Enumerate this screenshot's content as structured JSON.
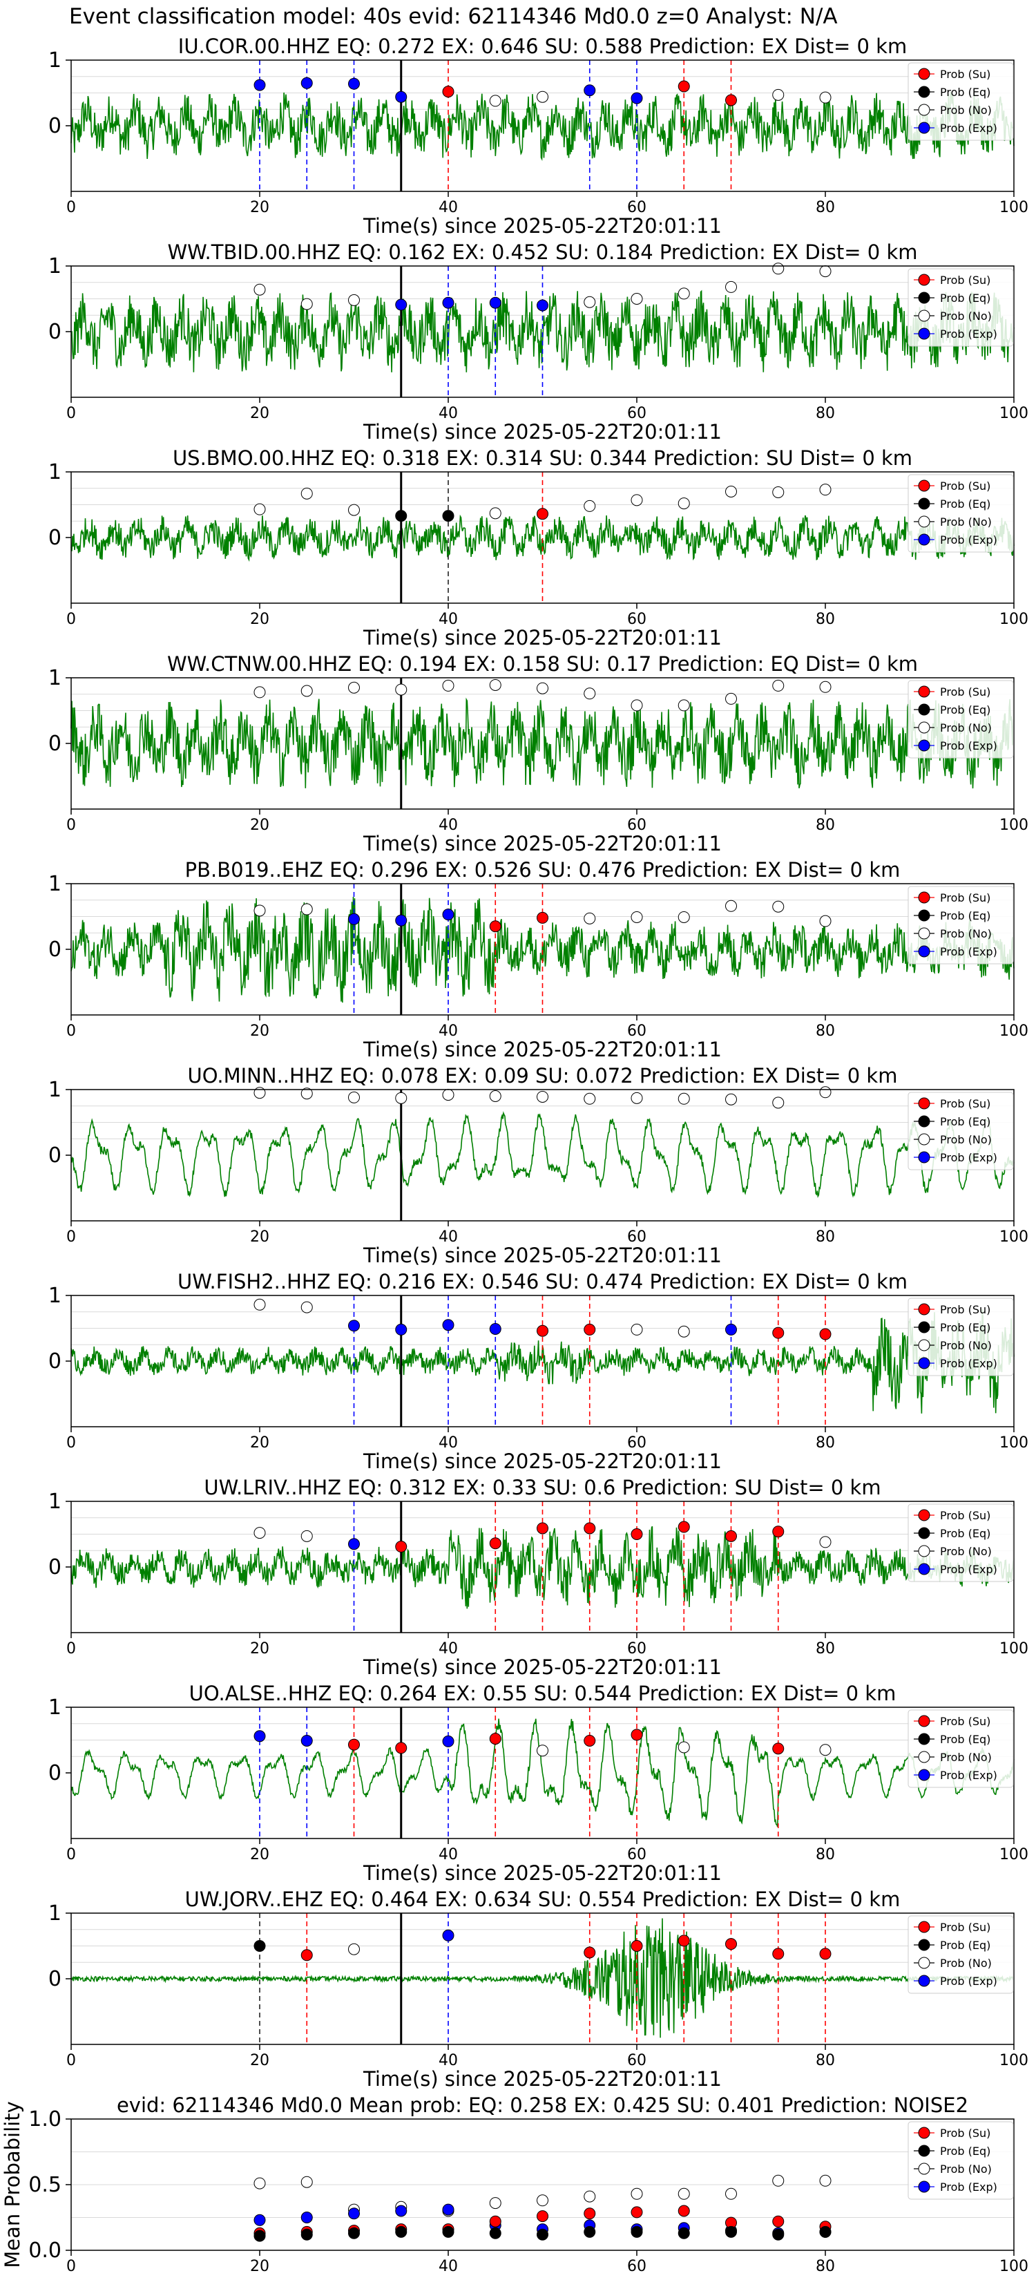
{
  "figure_title": "Event classification model: 40s evid: 62114346 Md0.0 z=0 Analyst: N/A",
  "legend_labels": [
    "Prob (Su)",
    "Prob (Eq)",
    "Prob (No)",
    "Prob (Exp)"
  ],
  "colors": {
    "trace": "#008000",
    "su": "#ff0000",
    "eq": "#000000",
    "no": "#ffffff",
    "exp": "#0000ff",
    "grid": "#d9d9d9"
  },
  "chart_data": [
    {
      "type": "line",
      "title": "IU.COR.00.HHZ   EQ: 0.272  EX: 0.646  SU: 0.588   Prediction: EX    Dist= 0 km",
      "xlabel": "Time(s) since 2025-05-22T20:01:11",
      "ylabel": "",
      "xlim": [
        0,
        100
      ],
      "ylim": [
        -1,
        1
      ],
      "xticks": [
        0,
        20,
        40,
        60,
        80,
        100
      ],
      "yticks": [
        0,
        1
      ],
      "waveform": {
        "amp": 0.45,
        "style": "noisy",
        "envelope": "even"
      },
      "onset_line_x": 35,
      "points": [
        {
          "x": 20,
          "y": 0.62,
          "cls": "exp"
        },
        {
          "x": 25,
          "y": 0.65,
          "cls": "exp"
        },
        {
          "x": 30,
          "y": 0.64,
          "cls": "exp"
        },
        {
          "x": 35,
          "y": 0.44,
          "cls": "exp"
        },
        {
          "x": 40,
          "y": 0.52,
          "cls": "su"
        },
        {
          "x": 45,
          "y": 0.38,
          "cls": "no"
        },
        {
          "x": 50,
          "y": 0.44,
          "cls": "no"
        },
        {
          "x": 55,
          "y": 0.54,
          "cls": "exp"
        },
        {
          "x": 60,
          "y": 0.42,
          "cls": "exp"
        },
        {
          "x": 65,
          "y": 0.6,
          "cls": "su"
        },
        {
          "x": 70,
          "y": 0.39,
          "cls": "su"
        },
        {
          "x": 75,
          "y": 0.47,
          "cls": "no"
        },
        {
          "x": 80,
          "y": 0.43,
          "cls": "no"
        }
      ]
    },
    {
      "type": "line",
      "title": "WW.TBID.00.HHZ   EQ: 0.162  EX: 0.452  SU: 0.184   Prediction: EX    Dist= 0 km",
      "xlabel": "Time(s) since 2025-05-22T20:01:11",
      "ylabel": "",
      "xlim": [
        0,
        100
      ],
      "ylim": [
        -1,
        1
      ],
      "xticks": [
        0,
        20,
        40,
        60,
        80,
        100
      ],
      "yticks": [
        0,
        1
      ],
      "waveform": {
        "amp": 0.55,
        "style": "noisy",
        "envelope": "even"
      },
      "onset_line_x": 35,
      "points": [
        {
          "x": 20,
          "y": 0.64,
          "cls": "no"
        },
        {
          "x": 25,
          "y": 0.42,
          "cls": "no"
        },
        {
          "x": 30,
          "y": 0.48,
          "cls": "no"
        },
        {
          "x": 35,
          "y": 0.41,
          "cls": "exp"
        },
        {
          "x": 40,
          "y": 0.44,
          "cls": "exp"
        },
        {
          "x": 45,
          "y": 0.44,
          "cls": "exp"
        },
        {
          "x": 50,
          "y": 0.4,
          "cls": "exp"
        },
        {
          "x": 55,
          "y": 0.45,
          "cls": "no"
        },
        {
          "x": 60,
          "y": 0.5,
          "cls": "no"
        },
        {
          "x": 65,
          "y": 0.58,
          "cls": "no"
        },
        {
          "x": 70,
          "y": 0.68,
          "cls": "no"
        },
        {
          "x": 75,
          "y": 0.96,
          "cls": "no"
        },
        {
          "x": 80,
          "y": 0.92,
          "cls": "no"
        }
      ]
    },
    {
      "type": "line",
      "title": "US.BMO.00.HHZ   EQ: 0.318  EX: 0.314  SU: 0.344   Prediction: SU    Dist= 0 km",
      "xlabel": "Time(s) since 2025-05-22T20:01:11",
      "ylabel": "",
      "xlim": [
        0,
        100
      ],
      "ylim": [
        -1,
        1
      ],
      "xticks": [
        0,
        20,
        40,
        60,
        80,
        100
      ],
      "yticks": [
        0,
        1
      ],
      "waveform": {
        "amp": 0.3,
        "style": "noisy",
        "envelope": "even"
      },
      "onset_line_x": 35,
      "points": [
        {
          "x": 20,
          "y": 0.43,
          "cls": "no"
        },
        {
          "x": 25,
          "y": 0.67,
          "cls": "no"
        },
        {
          "x": 30,
          "y": 0.42,
          "cls": "no"
        },
        {
          "x": 35,
          "y": 0.33,
          "cls": "eq"
        },
        {
          "x": 40,
          "y": 0.33,
          "cls": "eq"
        },
        {
          "x": 45,
          "y": 0.37,
          "cls": "no"
        },
        {
          "x": 50,
          "y": 0.36,
          "cls": "su"
        },
        {
          "x": 55,
          "y": 0.48,
          "cls": "no"
        },
        {
          "x": 60,
          "y": 0.57,
          "cls": "no"
        },
        {
          "x": 65,
          "y": 0.52,
          "cls": "no"
        },
        {
          "x": 70,
          "y": 0.7,
          "cls": "no"
        },
        {
          "x": 75,
          "y": 0.69,
          "cls": "no"
        },
        {
          "x": 80,
          "y": 0.73,
          "cls": "no"
        }
      ]
    },
    {
      "type": "line",
      "title": "WW.CTNW.00.HHZ   EQ: 0.194  EX: 0.158  SU: 0.17   Prediction: EQ    Dist= 0 km",
      "xlabel": "Time(s) since 2025-05-22T20:01:11",
      "ylabel": "",
      "xlim": [
        0,
        100
      ],
      "ylim": [
        -1,
        1
      ],
      "xticks": [
        0,
        20,
        40,
        60,
        80,
        100
      ],
      "yticks": [
        0,
        1
      ],
      "waveform": {
        "amp": 0.6,
        "style": "noisy",
        "envelope": "even"
      },
      "onset_line_x": 35,
      "points": [
        {
          "x": 20,
          "y": 0.78,
          "cls": "no"
        },
        {
          "x": 25,
          "y": 0.8,
          "cls": "no"
        },
        {
          "x": 30,
          "y": 0.85,
          "cls": "no"
        },
        {
          "x": 35,
          "y": 0.82,
          "cls": "no"
        },
        {
          "x": 40,
          "y": 0.88,
          "cls": "no"
        },
        {
          "x": 45,
          "y": 0.89,
          "cls": "no"
        },
        {
          "x": 50,
          "y": 0.84,
          "cls": "no"
        },
        {
          "x": 55,
          "y": 0.76,
          "cls": "no"
        },
        {
          "x": 60,
          "y": 0.58,
          "cls": "no"
        },
        {
          "x": 65,
          "y": 0.58,
          "cls": "no"
        },
        {
          "x": 70,
          "y": 0.68,
          "cls": "no"
        },
        {
          "x": 75,
          "y": 0.88,
          "cls": "no"
        },
        {
          "x": 80,
          "y": 0.86,
          "cls": "no"
        }
      ]
    },
    {
      "type": "line",
      "title": "PB.B019..EHZ   EQ: 0.296  EX: 0.526  SU: 0.476   Prediction: EX    Dist= 0 km",
      "xlabel": "Time(s) since 2025-05-22T20:01:11",
      "ylabel": "",
      "xlim": [
        0,
        100
      ],
      "ylim": [
        -1,
        1
      ],
      "xticks": [
        0,
        20,
        40,
        60,
        80,
        100
      ],
      "yticks": [
        0,
        1
      ],
      "waveform": {
        "amp": 0.55,
        "style": "noisy",
        "envelope": "early"
      },
      "onset_line_x": 35,
      "points": [
        {
          "x": 20,
          "y": 0.59,
          "cls": "no"
        },
        {
          "x": 25,
          "y": 0.61,
          "cls": "no"
        },
        {
          "x": 30,
          "y": 0.46,
          "cls": "exp"
        },
        {
          "x": 35,
          "y": 0.44,
          "cls": "exp"
        },
        {
          "x": 40,
          "y": 0.53,
          "cls": "exp"
        },
        {
          "x": 45,
          "y": 0.35,
          "cls": "su"
        },
        {
          "x": 50,
          "y": 0.48,
          "cls": "su"
        },
        {
          "x": 55,
          "y": 0.47,
          "cls": "no"
        },
        {
          "x": 60,
          "y": 0.49,
          "cls": "no"
        },
        {
          "x": 65,
          "y": 0.49,
          "cls": "no"
        },
        {
          "x": 70,
          "y": 0.66,
          "cls": "no"
        },
        {
          "x": 75,
          "y": 0.65,
          "cls": "no"
        },
        {
          "x": 80,
          "y": 0.43,
          "cls": "no"
        }
      ]
    },
    {
      "type": "line",
      "title": "UO.MINN..HHZ   EQ: 0.078  EX: 0.09  SU: 0.072   Prediction: EX    Dist= 0 km",
      "xlabel": "Time(s) since 2025-05-22T20:01:11",
      "ylabel": "",
      "xlim": [
        0,
        100
      ],
      "ylim": [
        -1,
        1
      ],
      "xticks": [
        0,
        20,
        40,
        60,
        80,
        100
      ],
      "yticks": [
        0,
        1
      ],
      "waveform": {
        "amp": 0.55,
        "style": "smooth",
        "envelope": "even"
      },
      "onset_line_x": 35,
      "points": [
        {
          "x": 20,
          "y": 0.95,
          "cls": "no"
        },
        {
          "x": 25,
          "y": 0.94,
          "cls": "no"
        },
        {
          "x": 30,
          "y": 0.88,
          "cls": "no"
        },
        {
          "x": 35,
          "y": 0.87,
          "cls": "no"
        },
        {
          "x": 40,
          "y": 0.92,
          "cls": "no"
        },
        {
          "x": 45,
          "y": 0.9,
          "cls": "no"
        },
        {
          "x": 50,
          "y": 0.89,
          "cls": "no"
        },
        {
          "x": 55,
          "y": 0.86,
          "cls": "no"
        },
        {
          "x": 60,
          "y": 0.87,
          "cls": "no"
        },
        {
          "x": 65,
          "y": 0.86,
          "cls": "no"
        },
        {
          "x": 70,
          "y": 0.85,
          "cls": "no"
        },
        {
          "x": 75,
          "y": 0.8,
          "cls": "no"
        },
        {
          "x": 80,
          "y": 0.96,
          "cls": "no"
        }
      ]
    },
    {
      "type": "line",
      "title": "UW.FISH2..HHZ   EQ: 0.216  EX: 0.546  SU: 0.474   Prediction: EX    Dist= 0 km",
      "xlabel": "Time(s) since 2025-05-22T20:01:11",
      "ylabel": "",
      "xlim": [
        0,
        100
      ],
      "ylim": [
        -1,
        1
      ],
      "xticks": [
        0,
        20,
        40,
        60,
        80,
        100
      ],
      "yticks": [
        0,
        1
      ],
      "waveform": {
        "amp": 0.2,
        "style": "noisy",
        "envelope": "late"
      },
      "onset_line_x": 35,
      "points": [
        {
          "x": 20,
          "y": 0.86,
          "cls": "no"
        },
        {
          "x": 25,
          "y": 0.82,
          "cls": "no"
        },
        {
          "x": 30,
          "y": 0.54,
          "cls": "exp"
        },
        {
          "x": 35,
          "y": 0.48,
          "cls": "exp"
        },
        {
          "x": 40,
          "y": 0.55,
          "cls": "exp"
        },
        {
          "x": 45,
          "y": 0.49,
          "cls": "exp"
        },
        {
          "x": 50,
          "y": 0.46,
          "cls": "su"
        },
        {
          "x": 55,
          "y": 0.48,
          "cls": "su"
        },
        {
          "x": 60,
          "y": 0.48,
          "cls": "no"
        },
        {
          "x": 65,
          "y": 0.45,
          "cls": "no"
        },
        {
          "x": 70,
          "y": 0.48,
          "cls": "exp"
        },
        {
          "x": 75,
          "y": 0.43,
          "cls": "su"
        },
        {
          "x": 80,
          "y": 0.41,
          "cls": "su"
        }
      ]
    },
    {
      "type": "line",
      "title": "UW.LRIV..HHZ   EQ: 0.312  EX: 0.33  SU: 0.6   Prediction: SU    Dist= 0 km",
      "xlabel": "Time(s) since 2025-05-22T20:01:11",
      "ylabel": "",
      "xlim": [
        0,
        100
      ],
      "ylim": [
        -1,
        1
      ],
      "xticks": [
        0,
        20,
        40,
        60,
        80,
        100
      ],
      "yticks": [
        0,
        1
      ],
      "waveform": {
        "amp": 0.35,
        "style": "noisy",
        "envelope": "mid"
      },
      "onset_line_x": 35,
      "points": [
        {
          "x": 20,
          "y": 0.52,
          "cls": "no"
        },
        {
          "x": 25,
          "y": 0.47,
          "cls": "no"
        },
        {
          "x": 30,
          "y": 0.35,
          "cls": "exp"
        },
        {
          "x": 35,
          "y": 0.31,
          "cls": "su"
        },
        {
          "x": 45,
          "y": 0.36,
          "cls": "su"
        },
        {
          "x": 50,
          "y": 0.59,
          "cls": "su"
        },
        {
          "x": 55,
          "y": 0.59,
          "cls": "su"
        },
        {
          "x": 60,
          "y": 0.5,
          "cls": "su"
        },
        {
          "x": 65,
          "y": 0.61,
          "cls": "su"
        },
        {
          "x": 70,
          "y": 0.47,
          "cls": "su"
        },
        {
          "x": 75,
          "y": 0.54,
          "cls": "su"
        },
        {
          "x": 80,
          "y": 0.38,
          "cls": "no"
        }
      ]
    },
    {
      "type": "line",
      "title": "UO.ALSE..HHZ   EQ: 0.264  EX: 0.55  SU: 0.544   Prediction: EX    Dist= 0 km",
      "xlabel": "Time(s) since 2025-05-22T20:01:11",
      "ylabel": "",
      "xlim": [
        0,
        100
      ],
      "ylim": [
        -1,
        1
      ],
      "xticks": [
        0,
        20,
        40,
        60,
        80,
        100
      ],
      "yticks": [
        0,
        1
      ],
      "waveform": {
        "amp": 0.45,
        "style": "smooth",
        "envelope": "mid"
      },
      "onset_line_x": 35,
      "points": [
        {
          "x": 20,
          "y": 0.56,
          "cls": "exp"
        },
        {
          "x": 25,
          "y": 0.49,
          "cls": "exp"
        },
        {
          "x": 30,
          "y": 0.43,
          "cls": "su"
        },
        {
          "x": 35,
          "y": 0.38,
          "cls": "su"
        },
        {
          "x": 40,
          "y": 0.48,
          "cls": "exp"
        },
        {
          "x": 45,
          "y": 0.52,
          "cls": "su"
        },
        {
          "x": 50,
          "y": 0.34,
          "cls": "no"
        },
        {
          "x": 55,
          "y": 0.49,
          "cls": "su"
        },
        {
          "x": 60,
          "y": 0.58,
          "cls": "su"
        },
        {
          "x": 65,
          "y": 0.39,
          "cls": "no"
        },
        {
          "x": 75,
          "y": 0.37,
          "cls": "su"
        },
        {
          "x": 80,
          "y": 0.35,
          "cls": "no"
        }
      ]
    },
    {
      "type": "line",
      "title": "UW.JORV..EHZ   EQ: 0.464  EX: 0.634  SU: 0.554   Prediction: EX    Dist= 0 km",
      "xlabel": "Time(s) since 2025-05-22T20:01:11",
      "ylabel": "",
      "xlim": [
        0,
        100
      ],
      "ylim": [
        -1,
        1
      ],
      "xticks": [
        0,
        20,
        40,
        60,
        80,
        100
      ],
      "yticks": [
        0,
        1
      ],
      "waveform": {
        "amp": 0.9,
        "style": "burst",
        "envelope": "burst"
      },
      "onset_line_x": 35,
      "points": [
        {
          "x": 20,
          "y": 0.5,
          "cls": "eq"
        },
        {
          "x": 25,
          "y": 0.36,
          "cls": "su"
        },
        {
          "x": 30,
          "y": 0.45,
          "cls": "no"
        },
        {
          "x": 40,
          "y": 0.66,
          "cls": "exp"
        },
        {
          "x": 55,
          "y": 0.4,
          "cls": "su"
        },
        {
          "x": 60,
          "y": 0.5,
          "cls": "su"
        },
        {
          "x": 65,
          "y": 0.58,
          "cls": "su"
        },
        {
          "x": 70,
          "y": 0.53,
          "cls": "su"
        },
        {
          "x": 75,
          "y": 0.38,
          "cls": "su"
        },
        {
          "x": 80,
          "y": 0.38,
          "cls": "su"
        }
      ]
    },
    {
      "type": "scatter",
      "title": "evid: 62114346  Md0.0   Mean prob:   EQ: 0.258  EX: 0.425  SU: 0.401   Prediction: NOISE2",
      "xlabel": "",
      "ylabel": "Mean Probability",
      "xlim": [
        0,
        100
      ],
      "ylim": [
        0,
        1
      ],
      "xticks": [
        0,
        20,
        40,
        60,
        80,
        100
      ],
      "yticks": [
        0.0,
        0.5,
        1.0
      ],
      "ytick_labels": [
        "0.0",
        "0.5",
        "1.0"
      ],
      "x": [
        20,
        25,
        30,
        35,
        40,
        45,
        50,
        55,
        60,
        65,
        70,
        75,
        80
      ],
      "series": [
        {
          "name": "Prob (Su)",
          "values": [
            0.13,
            0.14,
            0.15,
            0.16,
            0.16,
            0.22,
            0.26,
            0.28,
            0.29,
            0.3,
            0.21,
            0.22,
            0.18
          ]
        },
        {
          "name": "Prob (Eq)",
          "values": [
            0.11,
            0.12,
            0.13,
            0.14,
            0.14,
            0.13,
            0.12,
            0.14,
            0.14,
            0.13,
            0.14,
            0.12,
            0.14
          ]
        },
        {
          "name": "Prob (No)",
          "values": [
            0.51,
            0.52,
            0.31,
            0.33,
            0.3,
            0.36,
            0.38,
            0.41,
            0.43,
            0.43,
            0.43,
            0.53,
            0.53
          ]
        },
        {
          "name": "Prob (Exp)",
          "values": [
            0.23,
            0.25,
            0.28,
            0.3,
            0.31,
            0.19,
            0.16,
            0.19,
            0.16,
            0.17,
            0.15,
            0.13,
            0.14
          ]
        }
      ]
    }
  ]
}
